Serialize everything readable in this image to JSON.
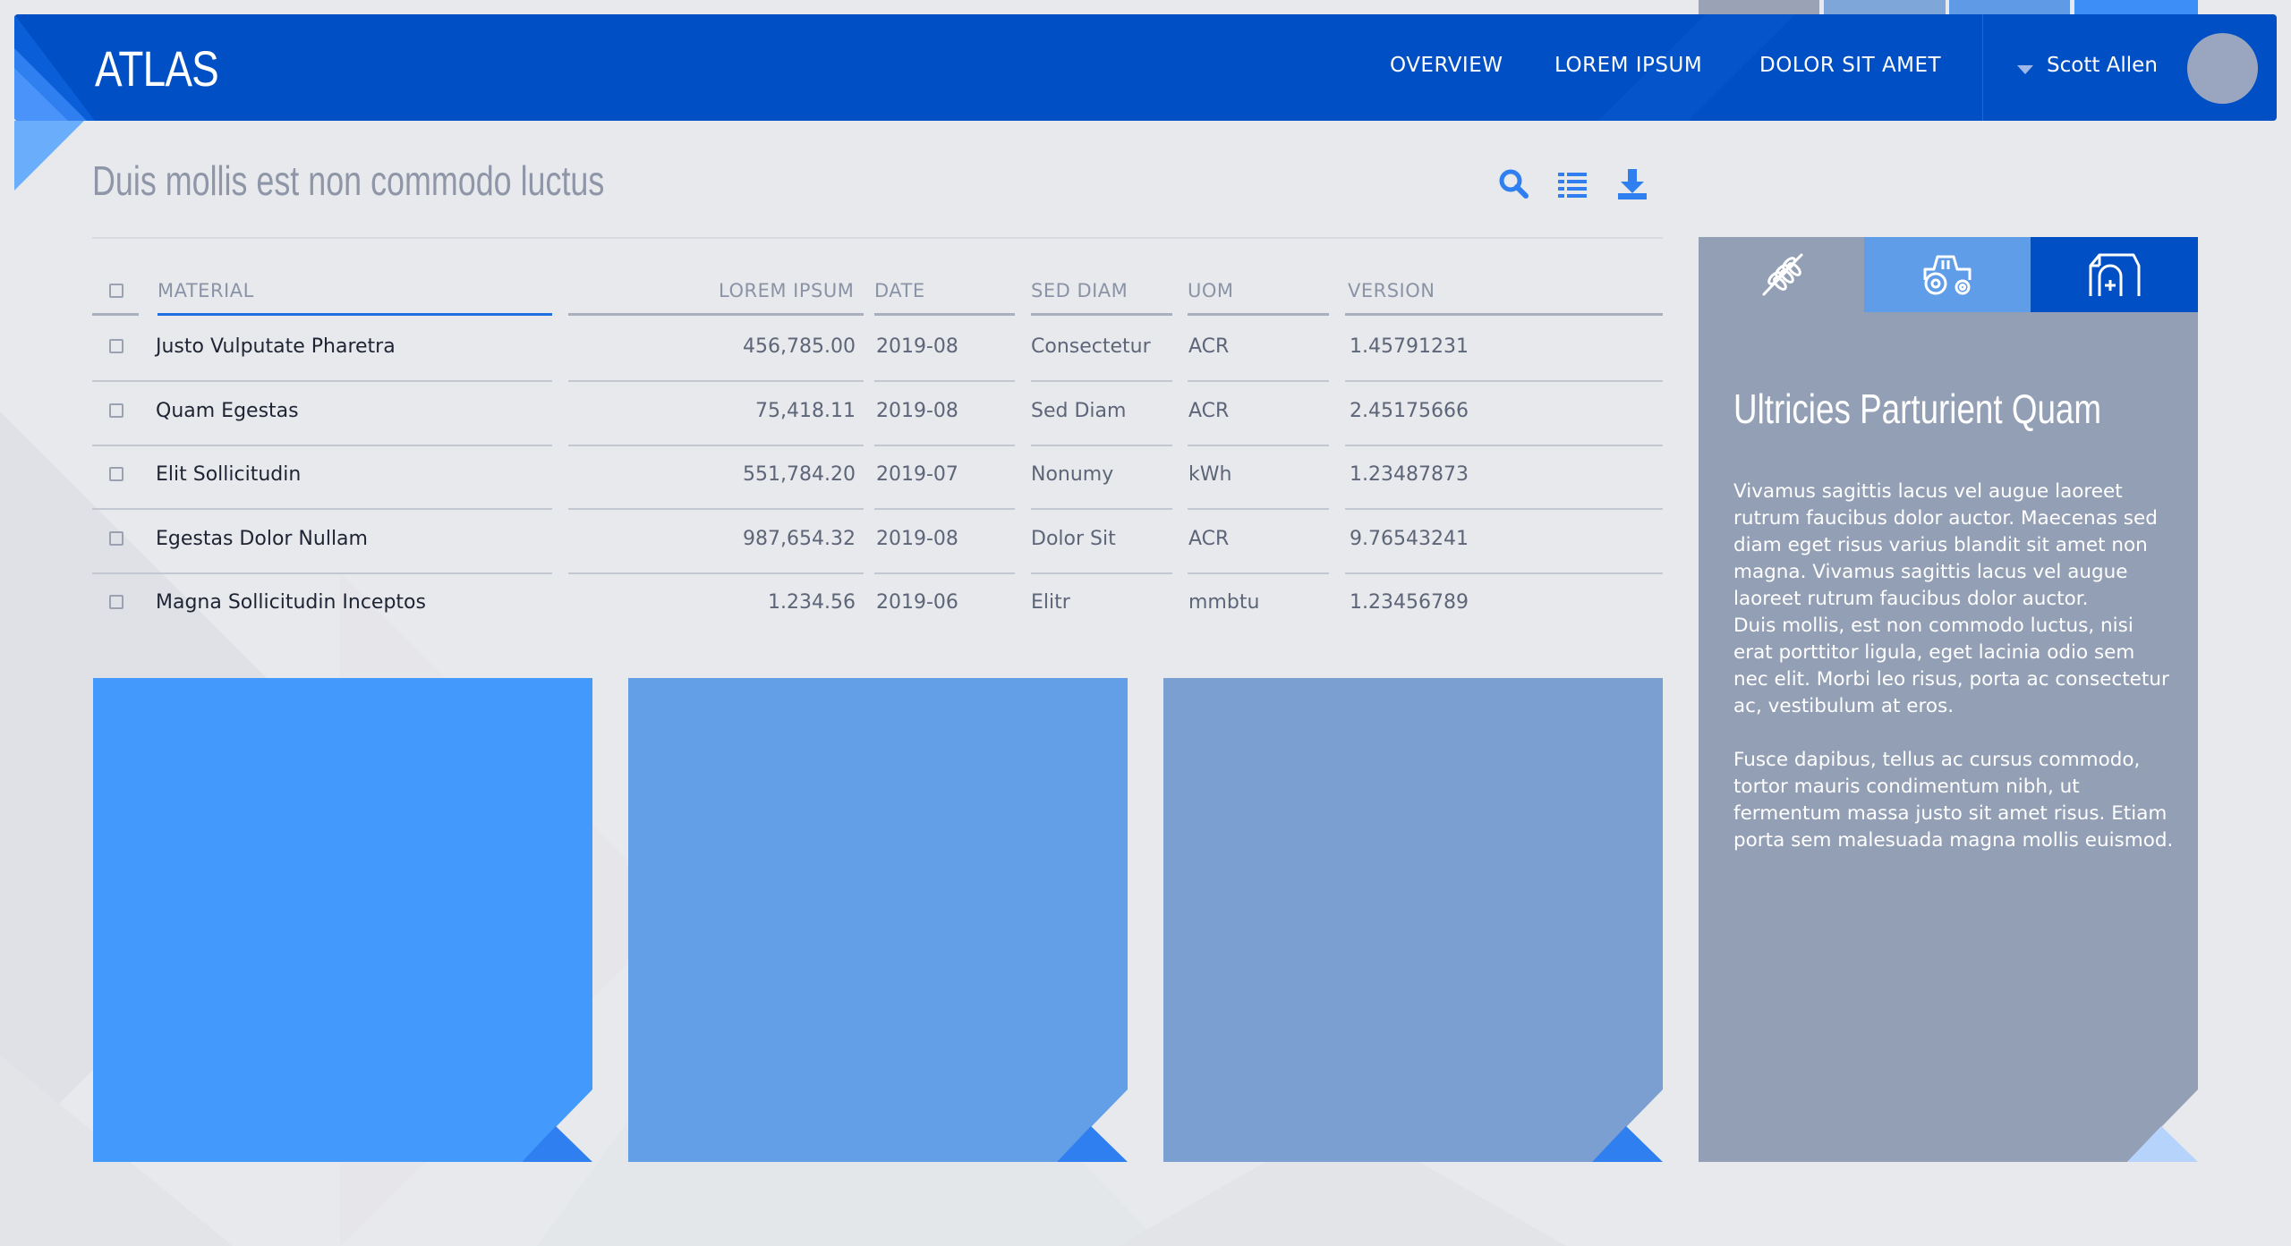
{
  "app": {
    "logo": "ATLAS"
  },
  "nav": [
    {
      "label": "OVERVIEW"
    },
    {
      "label": "LOREM IPSUM"
    },
    {
      "label": "DOLOR SIT AMET"
    }
  ],
  "user": {
    "name": "Scott Allen",
    "avatar_icon": "avatar-icon"
  },
  "page": {
    "title": "Duis mollis est non commodo luctus"
  },
  "toolbar": {
    "icons": [
      "search-icon",
      "list-view-icon",
      "download-icon"
    ]
  },
  "table": {
    "headers": {
      "material": "MATERIAL",
      "lorem": "LOREM IPSUM",
      "date": "DATE",
      "sed": "SED DIAM",
      "uom": "UOM",
      "version": "VERSION"
    },
    "rows": [
      {
        "material": "Justo Vulputate Pharetra",
        "lorem": "456,785.00",
        "date": "2019-08",
        "sed": "Consectetur",
        "uom": "ACR",
        "version": "1.45791231"
      },
      {
        "material": "Quam Egestas",
        "lorem": "75,418.11",
        "date": "2019-08",
        "sed": "Sed Diam",
        "uom": "ACR",
        "version": "2.45175666"
      },
      {
        "material": "Elit Sollicitudin",
        "lorem": "551,784.20",
        "date": "2019-07",
        "sed": "Nonumy",
        "uom": "kWh",
        "version": "1.23487873"
      },
      {
        "material": "Egestas Dolor Nullam",
        "lorem": "987,654.32",
        "date": "2019-08",
        "sed": "Dolor Sit",
        "uom": "ACR",
        "version": "9.76543241"
      },
      {
        "material": "Magna Sollicitudin Inceptos",
        "lorem": "1.234.56",
        "date": "2019-06",
        "sed": "Elitr",
        "uom": "mmbtu",
        "version": "1.23456789"
      }
    ]
  },
  "cards": [
    {
      "color": "#4499fd"
    },
    {
      "color": "#639fe6"
    },
    {
      "color": "#7a9fd0"
    }
  ],
  "panel": {
    "tabs": [
      {
        "icon": "wheat-icon",
        "color": "#939fb5"
      },
      {
        "icon": "tractor-icon",
        "color": "#5f9de8"
      },
      {
        "icon": "barn-icon",
        "color": "#004fc4"
      }
    ],
    "title": "Ultricies Parturient Quam",
    "paragraphs": [
      "Vivamus sagittis lacus vel augue laoreet rutrum faucibus dolor auctor. Maecenas sed diam eget risus varius blandit sit amet non magna. Vivamus sagittis lacus vel augue laoreet rutrum faucibus dolor auctor.",
      "Duis mollis, est non commodo luctus, nisi erat porttitor ligula, eget lacinia odio sem nec elit. Morbi leo risus, porta ac consectetur ac, vestibulum at eros.",
      "Fusce dapibus, tellus ac cursus commodo, tortor mauris condimentum nibh, ut fermentum massa justo sit amet risus. Etiam porta sem malesuada magna mollis euismod."
    ]
  },
  "colors": {
    "primary": "#004fc4",
    "accent": "#1f6fe0",
    "panel": "#939fb5",
    "background": "#e8e9ec"
  }
}
